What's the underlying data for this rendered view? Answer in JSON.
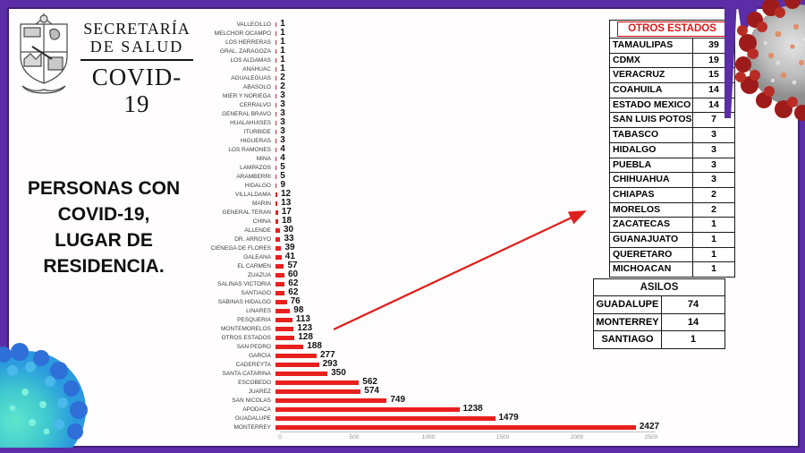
{
  "logo": {
    "line1": "SECRETARÍA",
    "line2": "DE SALUD",
    "program": "COVID-19"
  },
  "title_lines": [
    "PERSONAS CON",
    "COVID-19,",
    "LUGAR DE",
    "RESIDENCIA."
  ],
  "chart_data": {
    "type": "bar",
    "orientation": "horizontal",
    "title": "PERSONAS CON COVID-19, LUGAR DE RESIDENCIA",
    "categories": [
      "VALLECILLO",
      "MELCHOR OCAMPO",
      "LOS HERRERAS",
      "GRAL. ZARAGOZA",
      "LOS ALDAMAS",
      "ANAHUAC",
      "AGUALEGUAS",
      "ABASOLO",
      "MIER Y NORIEGA",
      "CERRALVO",
      "GENERAL BRAVO",
      "HUALAHUISES",
      "ITURBIDE",
      "HIGUERAS",
      "LOS RAMONES",
      "MINA",
      "LAMPAZOS",
      "ARAMBERRI",
      "HIDALGO",
      "VILLALDAMA",
      "MARIN",
      "GENERAL TERAN",
      "CHINA",
      "ALLENDE",
      "DR. ARROYO",
      "CIENEGA DE FLORES",
      "GALEANA",
      "EL CARMEN",
      "ZUAZUA",
      "SALINAS VICTORIA",
      "SANTIAGO",
      "SABINAS HIDALGO",
      "LINARES",
      "PESQUERIA",
      "MONTEMORELOS",
      "OTROS ESTADOS",
      "SAN PEDRO",
      "GARCIA",
      "CADEREYTA",
      "SANTA CATARINA",
      "ESCOBEDO",
      "JUAREZ",
      "SAN NICOLAS",
      "APODACA",
      "GUADALUPE",
      "MONTERREY"
    ],
    "values": [
      1,
      1,
      1,
      1,
      1,
      1,
      2,
      2,
      3,
      3,
      3,
      3,
      3,
      3,
      4,
      4,
      5,
      5,
      9,
      12,
      13,
      17,
      18,
      30,
      33,
      39,
      41,
      57,
      60,
      62,
      62,
      76,
      98,
      113,
      123,
      128,
      188,
      277,
      293,
      350,
      562,
      574,
      749,
      1238,
      1479,
      2427
    ],
    "xlim": [
      0,
      2500
    ],
    "x_ticks": [
      0,
      500,
      1000,
      1500,
      2000,
      2500
    ],
    "bar_color": "#e8201e",
    "grid": false,
    "value_labels": true,
    "legend": "none"
  },
  "otros_estados": {
    "title": "OTROS ESTADOS",
    "title_color": "#e01616",
    "rows": [
      {
        "label": "TAMAULIPAS",
        "count": 39
      },
      {
        "label": "CDMX",
        "count": 19
      },
      {
        "label": "VERACRUZ",
        "count": 15
      },
      {
        "label": "COAHUILA",
        "count": 14
      },
      {
        "label": "ESTADO MEXICO",
        "count": 14
      },
      {
        "label": "SAN LUIS POTOSI",
        "count": 7
      },
      {
        "label": "TABASCO",
        "count": 3
      },
      {
        "label": "HIDALGO",
        "count": 3
      },
      {
        "label": "PUEBLA",
        "count": 3
      },
      {
        "label": "CHIHUAHUA",
        "count": 3
      },
      {
        "label": "CHIAPAS",
        "count": 2
      },
      {
        "label": "MORELOS",
        "count": 2
      },
      {
        "label": "ZACATECAS",
        "count": 1
      },
      {
        "label": "GUANAJUATO",
        "count": 1
      },
      {
        "label": "QUERETARO",
        "count": 1
      },
      {
        "label": "MICHOACAN",
        "count": 1
      }
    ]
  },
  "asilos": {
    "title": "ASILOS",
    "rows": [
      {
        "label": "GUADALUPE",
        "count": 74
      },
      {
        "label": "MONTERREY",
        "count": 14
      },
      {
        "label": "SANTIAGO",
        "count": 1
      }
    ]
  },
  "colors": {
    "frame": "#5b2da6",
    "frame_inner": "#41207a",
    "bar": "#e8201e",
    "arrow": "#e0201c",
    "table_border": "#1a1a1a",
    "otros_title": "#e01616"
  }
}
